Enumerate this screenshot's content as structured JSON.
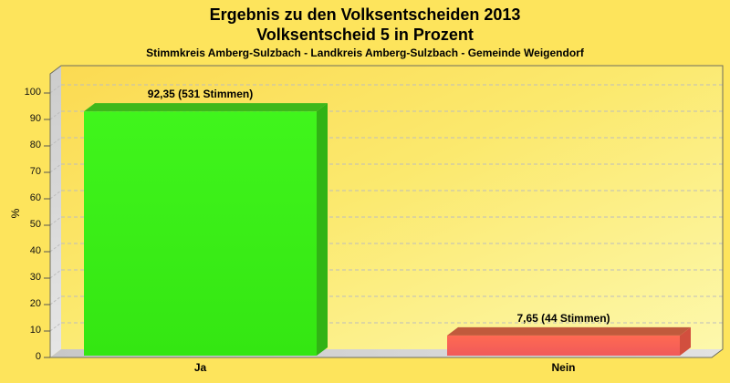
{
  "header": {
    "title": "Ergebnis zu den Volksentscheiden 2013",
    "subtitle": "Volksentscheid 5 in Prozent",
    "region_line": "Stimmkreis Amberg-Sulzbach - Landkreis Amberg-Sulzbach - Gemeinde Weigendorf"
  },
  "colors": {
    "page_background": "#fde45c",
    "wall_gradient_start": "#fbda52",
    "wall_gradient_mid": "#fbe96e",
    "wall_gradient_end": "#fdf8ac",
    "left_wall_light": "#e6e6e6",
    "left_wall_dark": "#cccccc",
    "floor_light": "#e2e2e2",
    "floor_dark": "#c8c8c8",
    "outline": "#6e6e5e",
    "gridline": "#bdbdbd",
    "text": "#000000"
  },
  "chart_data": {
    "type": "bar",
    "title": "Ergebnis zu den Volksentscheiden 2013",
    "subtitle": "Volksentscheid 5 in Prozent",
    "annotation_line": "Stimmkreis Amberg-Sulzbach - Landkreis Amberg-Sulzbach - Gemeinde Weigendorf",
    "categories": [
      "Ja",
      "Nein"
    ],
    "values": [
      92.35,
      7.65
    ],
    "votes": [
      531,
      44
    ],
    "value_labels": [
      "92,35 (531 Stimmen)",
      "7,65 (44 Stimmen)"
    ],
    "xlabel": "",
    "ylabel": "%",
    "ylim": [
      0,
      107
    ],
    "yticks": [
      0,
      10,
      20,
      30,
      40,
      50,
      60,
      70,
      80,
      90,
      100
    ],
    "grid": "dashed-horizontal",
    "legend_position": "none",
    "style": "3d-bars",
    "bars": [
      {
        "category": "Ja",
        "value": 92.35,
        "label": "92,35 (531 Stimmen)",
        "color_front": "#40f51c",
        "color_front2": "#34e612",
        "color_top": "#3eb81b",
        "color_side": "#31b315"
      },
      {
        "category": "Nein",
        "value": 7.65,
        "label": "7,65 (44 Stimmen)",
        "color_front": "#ff6a52",
        "color_front2": "#f05a5a",
        "color_top": "#c05a3c",
        "color_side": "#d24f3e"
      }
    ]
  }
}
